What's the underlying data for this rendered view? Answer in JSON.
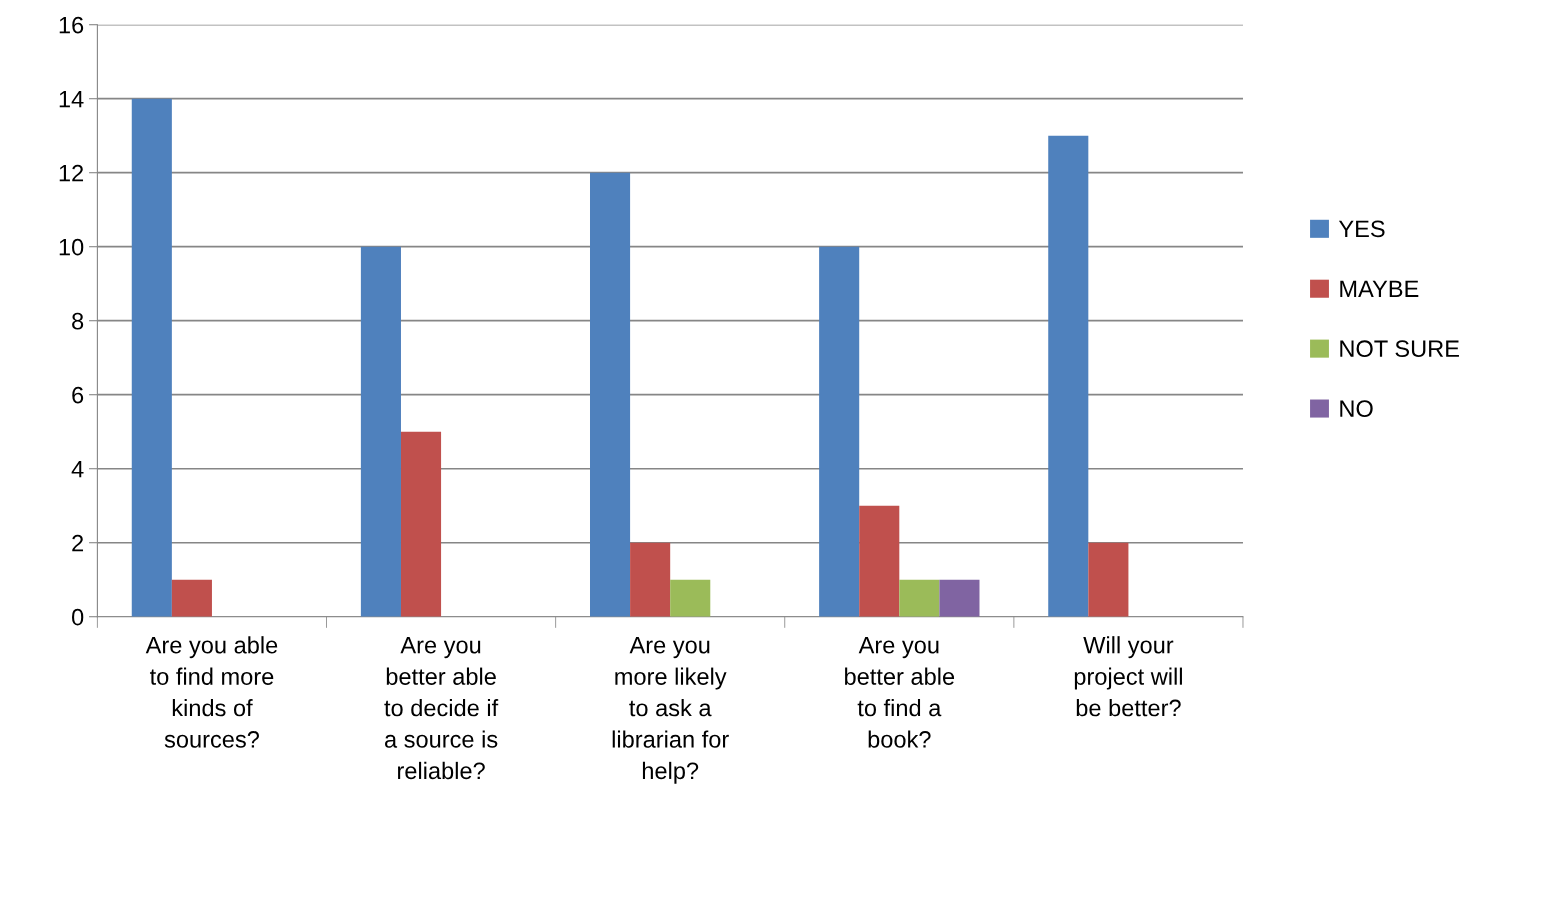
{
  "chart_data": {
    "type": "bar",
    "categories": [
      "Are you able\nto find more\nkinds of\nsources?",
      "Are you\nbetter able\nto decide if\na source is\nreliable?",
      "Are you\nmore likely\nto ask a\nlibrarian for\nhelp?",
      "Are you\nbetter able\nto find a\nbook?",
      "Will your\nproject will\nbe better?"
    ],
    "series": [
      {
        "name": "YES",
        "color": "#4f81bd",
        "values": [
          14,
          10,
          12,
          10,
          13
        ]
      },
      {
        "name": "MAYBE",
        "color": "#c0504d",
        "values": [
          1,
          5,
          2,
          3,
          2
        ]
      },
      {
        "name": "NOT SURE",
        "color": "#9bbb59",
        "values": [
          0,
          0,
          1,
          1,
          0
        ]
      },
      {
        "name": "NO",
        "color": "#8064a2",
        "values": [
          0,
          0,
          0,
          1,
          0
        ]
      }
    ],
    "ylim": [
      0,
      16
    ],
    "yticks": [
      0,
      2,
      4,
      6,
      8,
      10,
      12,
      14,
      16
    ],
    "grid": "y",
    "legend": "right"
  }
}
